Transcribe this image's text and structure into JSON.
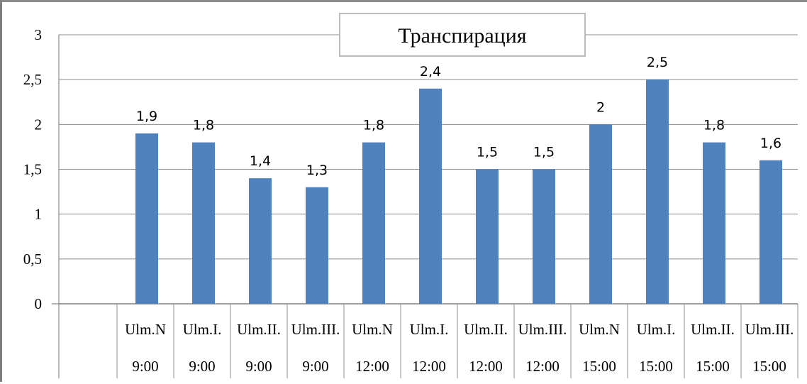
{
  "chart_data": {
    "type": "bar",
    "title": "Транспирация",
    "categories": [
      [
        "Ulm.N",
        "9:00"
      ],
      [
        "Ulm.I.",
        "9:00"
      ],
      [
        "Ulm.II.",
        "9:00"
      ],
      [
        "Ulm.III.",
        "9:00"
      ],
      [
        "Ulm.N",
        "12:00"
      ],
      [
        "Ulm.I.",
        "12:00"
      ],
      [
        "Ulm.II.",
        "12:00"
      ],
      [
        "Ulm.III.",
        "12:00"
      ],
      [
        "Ulm.N",
        "15:00"
      ],
      [
        "Ulm.I.",
        "15:00"
      ],
      [
        "Ulm.II.",
        "15:00"
      ],
      [
        "Ulm.III.",
        "15:00"
      ]
    ],
    "values": [
      1.9,
      1.8,
      1.4,
      1.3,
      1.8,
      2.4,
      1.5,
      1.5,
      2,
      2.5,
      1.8,
      1.6
    ],
    "value_labels": [
      "1,9",
      "1,8",
      "1,4",
      "1,3",
      "1,8",
      "2,4",
      "1,5",
      "1,5",
      "2",
      "2,5",
      "1,8",
      "1,6"
    ],
    "ylim": [
      0,
      3
    ],
    "yticks": [
      0,
      0.5,
      1,
      1.5,
      2,
      2.5,
      3
    ],
    "ytick_labels": [
      "0",
      "0,5",
      "1",
      "1,5",
      "2",
      "2,5",
      "3"
    ],
    "grid": true,
    "legend": "none",
    "bar_color": "#4F81BD"
  }
}
